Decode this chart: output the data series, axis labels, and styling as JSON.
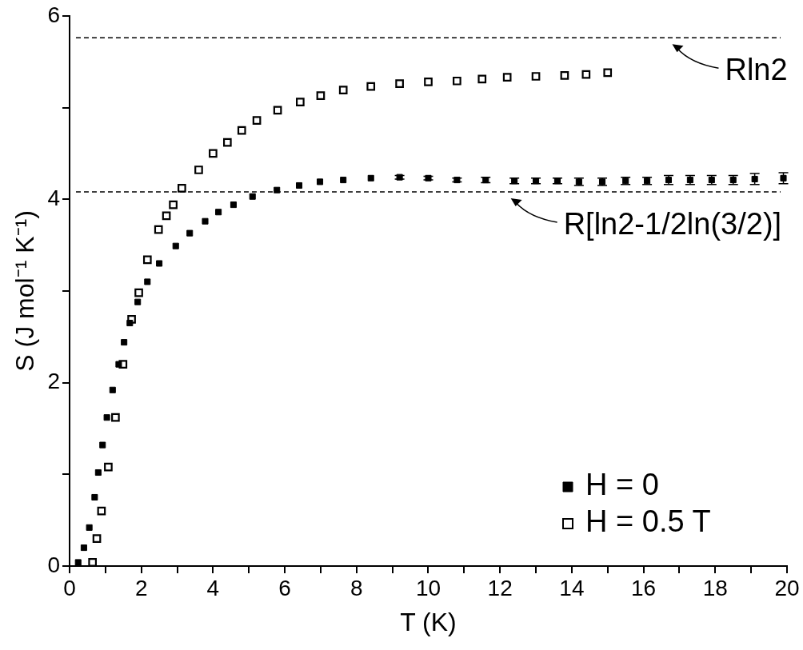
{
  "chart_data": {
    "type": "scatter",
    "xlabel": "T (K)",
    "ylabel": "S (J mol⁻¹ K⁻¹)",
    "xlim": [
      0,
      20
    ],
    "xticks": [
      0,
      {
        "value": 1,
        "label": null
      },
      2,
      {
        "value": 3,
        "label": null
      },
      4,
      {
        "value": 5,
        "label": null
      },
      6,
      {
        "value": 7,
        "label": null
      },
      8,
      {
        "value": 9,
        "label": null
      },
      10,
      {
        "value": 11,
        "label": null
      },
      12,
      {
        "value": 13,
        "label": null
      },
      14,
      {
        "value": 15,
        "label": null
      },
      16,
      {
        "value": 17,
        "label": null
      },
      18,
      {
        "value": 19,
        "label": null
      },
      20
    ],
    "ylim": [
      0,
      6
    ],
    "yticks": [
      0,
      {
        "value": 1,
        "label": null
      },
      2,
      {
        "value": 3,
        "label": null
      },
      4,
      {
        "value": 5,
        "label": null
      },
      6
    ],
    "marker": "square",
    "legend": "bottom right",
    "grid": false,
    "ref_lines": [
      {
        "axis": "y",
        "value": 5.76,
        "line_style": "dashed",
        "color": "#000000"
      },
      {
        "axis": "y",
        "value": 4.08,
        "line_style": "dashed",
        "color": "#000000"
      }
    ],
    "annotations": [
      {
        "text": "Rln2",
        "x": 16.8,
        "y": 5.76
      },
      {
        "text": "R[ln2-1/2ln(3/2)]",
        "x": 12.3,
        "y": 4.08
      }
    ],
    "series": [
      {
        "name": "H = 0",
        "color": "#000000",
        "x": [
          0.24,
          0.4,
          0.55,
          0.7,
          0.8,
          0.92,
          1.04,
          1.2,
          1.37,
          1.52,
          1.68,
          1.9,
          2.17,
          2.5,
          2.96,
          3.35,
          3.78,
          4.15,
          4.57,
          5.1,
          5.78,
          6.4,
          6.98,
          7.63,
          8.4,
          9.2,
          10.0,
          10.8,
          11.6,
          12.4,
          13.0,
          13.6,
          14.2,
          14.85,
          15.5,
          16.1,
          16.7,
          17.3,
          17.9,
          18.5,
          19.1,
          19.9
        ],
        "values": [
          0.04,
          0.2,
          0.42,
          0.75,
          1.02,
          1.32,
          1.62,
          1.92,
          2.2,
          2.44,
          2.65,
          2.88,
          3.1,
          3.3,
          3.49,
          3.63,
          3.76,
          3.86,
          3.94,
          4.03,
          4.1,
          4.15,
          4.19,
          4.21,
          4.23,
          4.24,
          4.23,
          4.21,
          4.21,
          4.2,
          4.2,
          4.2,
          4.19,
          4.19,
          4.2,
          4.2,
          4.21,
          4.21,
          4.21,
          4.21,
          4.22,
          4.23
        ],
        "errors": [
          null,
          null,
          null,
          null,
          null,
          null,
          null,
          null,
          null,
          null,
          null,
          null,
          null,
          null,
          null,
          null,
          null,
          null,
          null,
          null,
          null,
          null,
          null,
          null,
          null,
          0.02,
          0.02,
          0.02,
          0.03,
          0.03,
          0.03,
          0.03,
          0.04,
          0.04,
          0.04,
          0.04,
          0.05,
          0.05,
          0.05,
          0.05,
          0.06,
          0.06
        ]
      },
      {
        "name": "H = 0.5 T",
        "color": "#000000",
        "x": [
          0.64,
          0.76,
          0.89,
          1.08,
          1.28,
          1.49,
          1.73,
          1.93,
          2.17,
          2.48,
          2.7,
          2.89,
          3.13,
          3.6,
          4.0,
          4.4,
          4.8,
          5.22,
          5.8,
          6.43,
          7.0,
          7.63,
          8.4,
          9.2,
          10.0,
          10.8,
          11.5,
          12.2,
          13.0,
          13.8,
          14.4,
          15.0
        ],
        "values": [
          0.04,
          0.3,
          0.6,
          1.08,
          1.62,
          2.2,
          2.69,
          2.98,
          3.34,
          3.67,
          3.82,
          3.94,
          4.12,
          4.32,
          4.5,
          4.62,
          4.75,
          4.86,
          4.97,
          5.06,
          5.13,
          5.19,
          5.23,
          5.26,
          5.28,
          5.29,
          5.31,
          5.33,
          5.34,
          5.35,
          5.36,
          5.38
        ]
      }
    ]
  }
}
